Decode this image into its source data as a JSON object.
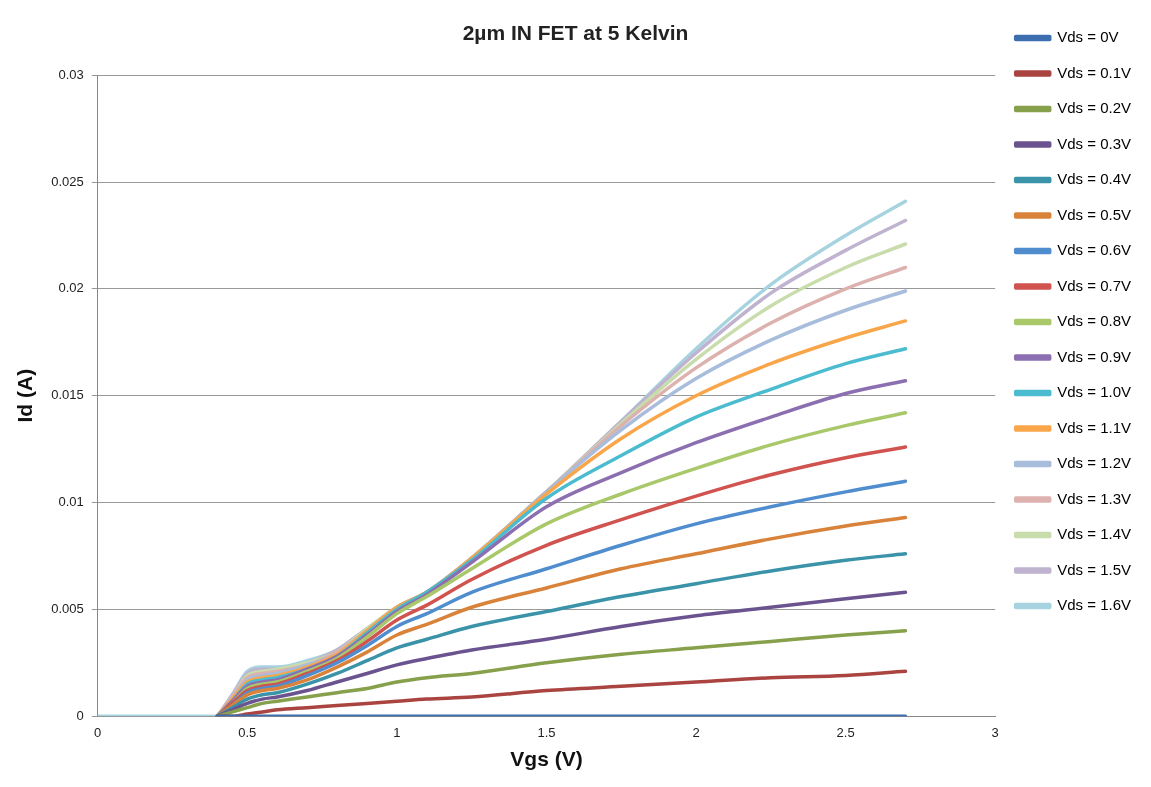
{
  "chart_data": {
    "type": "line",
    "title": "2µm IN FET at 5 Kelvin",
    "xlabel": "Vgs (V)",
    "ylabel": "Id (A)",
    "x": [
      0,
      0.35,
      0.4,
      0.45,
      0.5,
      0.55,
      0.6,
      0.7,
      0.8,
      0.9,
      1.0,
      1.1,
      1.25,
      1.5,
      1.75,
      2.0,
      2.25,
      2.5,
      2.7
    ],
    "xlim": [
      0,
      3
    ],
    "xticks": [
      0,
      0.5,
      1,
      1.5,
      2,
      2.5,
      3
    ],
    "ylim": [
      0,
      0.03
    ],
    "yticks": [
      0,
      0.005,
      0.01,
      0.015,
      0.02,
      0.025,
      0.03
    ],
    "grid": "y",
    "legend": "right",
    "marker": "none",
    "line_style": "solid",
    "series": [
      {
        "name": "Vds = 0V",
        "color": "#3d6fb0",
        "values": [
          null,
          null,
          0,
          0,
          0,
          0,
          0,
          0,
          0,
          0,
          0,
          0,
          0,
          0,
          0,
          0,
          0,
          0,
          0
        ]
      },
      {
        "name": "Vds = 0.1V",
        "color": "#a94441",
        "values": [
          null,
          null,
          0,
          0,
          0.0001,
          0.0002,
          0.0003,
          0.0004,
          0.0005,
          0.0006,
          0.0007,
          0.0008,
          0.0009,
          0.0012,
          0.0014,
          0.0016,
          0.0018,
          0.0019,
          0.0021
        ]
      },
      {
        "name": "Vds = 0.2V",
        "color": "#86a04b",
        "values": [
          null,
          null,
          0,
          0.0002,
          0.0004,
          0.0006,
          0.0007,
          0.0009,
          0.0011,
          0.0013,
          0.0016,
          0.0018,
          0.002,
          0.0025,
          0.0029,
          0.0032,
          0.0035,
          0.0038,
          0.004
        ]
      },
      {
        "name": "Vds = 0.3V",
        "color": "#6b5390",
        "values": [
          null,
          null,
          0,
          0.0003,
          0.0006,
          0.0008,
          0.0009,
          0.0012,
          0.0016,
          0.002,
          0.0024,
          0.0027,
          0.0031,
          0.0036,
          0.0042,
          0.0047,
          0.0051,
          0.0055,
          0.0058
        ]
      },
      {
        "name": "Vds = 0.4V",
        "color": "#3a93a8",
        "values": [
          null,
          null,
          0,
          0.0004,
          0.0008,
          0.001,
          0.0011,
          0.0015,
          0.002,
          0.0026,
          0.0032,
          0.0036,
          0.0042,
          0.0049,
          0.0056,
          0.0062,
          0.0068,
          0.0073,
          0.0076
        ]
      },
      {
        "name": "Vds = 0.5V",
        "color": "#d8823a",
        "values": [
          null,
          null,
          0,
          0.0005,
          0.001,
          0.0012,
          0.0013,
          0.0017,
          0.0023,
          0.003,
          0.0038,
          0.0043,
          0.0051,
          0.006,
          0.0069,
          0.0076,
          0.0083,
          0.0089,
          0.0093
        ]
      },
      {
        "name": "Vds = 0.6V",
        "color": "#4f8dce",
        "values": [
          null,
          null,
          0,
          0.0005,
          0.0011,
          0.0013,
          0.0014,
          0.0019,
          0.0025,
          0.0033,
          0.0042,
          0.0048,
          0.0058,
          0.0069,
          0.008,
          0.009,
          0.0098,
          0.0105,
          0.011
        ]
      },
      {
        "name": "Vds = 0.7V",
        "color": "#d0534f",
        "values": [
          null,
          null,
          0,
          0.0006,
          0.0012,
          0.0014,
          0.0015,
          0.002,
          0.0026,
          0.0035,
          0.0045,
          0.0052,
          0.0064,
          0.008,
          0.0092,
          0.0103,
          0.0113,
          0.0121,
          0.0126
        ]
      },
      {
        "name": "Vds = 0.8V",
        "color": "#a9c86a",
        "values": [
          null,
          null,
          0,
          0.0006,
          0.0013,
          0.0015,
          0.0016,
          0.0021,
          0.0027,
          0.0037,
          0.0048,
          0.0056,
          0.0069,
          0.009,
          0.0104,
          0.0116,
          0.0127,
          0.0136,
          0.0142
        ]
      },
      {
        "name": "Vds = 0.9V",
        "color": "#8c6fb0",
        "values": [
          null,
          null,
          0,
          0.0007,
          0.0014,
          0.0016,
          0.0017,
          0.0022,
          0.0028,
          0.0038,
          0.0049,
          0.0057,
          0.0072,
          0.0098,
          0.0114,
          0.0128,
          0.014,
          0.0151,
          0.0157
        ]
      },
      {
        "name": "Vds = 1.0V",
        "color": "#4bbccf",
        "values": [
          null,
          null,
          0,
          0.0007,
          0.0015,
          0.0017,
          0.0018,
          0.0022,
          0.0028,
          0.0039,
          0.005,
          0.0058,
          0.0073,
          0.0102,
          0.0122,
          0.014,
          0.0153,
          0.0165,
          0.0172
        ]
      },
      {
        "name": "Vds = 1.1V",
        "color": "#f9a64a",
        "values": [
          null,
          null,
          0,
          0.0008,
          0.0016,
          0.0018,
          0.0019,
          0.0023,
          0.0029,
          0.004,
          0.0051,
          0.0058,
          0.0074,
          0.0104,
          0.013,
          0.015,
          0.0165,
          0.0177,
          0.0185
        ]
      },
      {
        "name": "Vds = 1.2V",
        "color": "#a8bcdc",
        "values": [
          null,
          null,
          0,
          0.0008,
          0.0017,
          0.0019,
          0.002,
          0.0024,
          0.0029,
          0.004,
          0.0051,
          0.0058,
          0.0074,
          0.0105,
          0.0134,
          0.0158,
          0.0176,
          0.019,
          0.0199
        ]
      },
      {
        "name": "Vds = 1.3V",
        "color": "#ddb1ad",
        "values": [
          null,
          null,
          0,
          0.0009,
          0.0018,
          0.002,
          0.0021,
          0.0024,
          0.003,
          0.004,
          0.0051,
          0.0058,
          0.0074,
          0.0105,
          0.0136,
          0.0163,
          0.0184,
          0.02,
          0.021
        ]
      },
      {
        "name": "Vds = 1.4V",
        "color": "#c8dcac",
        "values": [
          null,
          null,
          0,
          0.0009,
          0.0019,
          0.0021,
          0.0022,
          0.0025,
          0.003,
          0.0041,
          0.0051,
          0.0058,
          0.0074,
          0.0105,
          0.0137,
          0.0167,
          0.0192,
          0.021,
          0.0221
        ]
      },
      {
        "name": "Vds = 1.5V",
        "color": "#bfb3cf",
        "values": [
          null,
          null,
          0,
          0.001,
          0.002,
          0.0022,
          0.0022,
          0.0025,
          0.0031,
          0.0041,
          0.005,
          0.0058,
          0.0074,
          0.0105,
          0.0138,
          0.017,
          0.0198,
          0.0218,
          0.0232
        ]
      },
      {
        "name": "Vds = 1.6V",
        "color": "#a6d3df",
        "values": [
          0,
          0,
          0,
          0.001,
          0.0021,
          0.0023,
          0.0023,
          0.0026,
          0.0031,
          0.0041,
          0.005,
          0.0058,
          0.0074,
          0.0105,
          0.0138,
          0.0172,
          0.0202,
          0.0225,
          0.0241
        ]
      }
    ]
  }
}
